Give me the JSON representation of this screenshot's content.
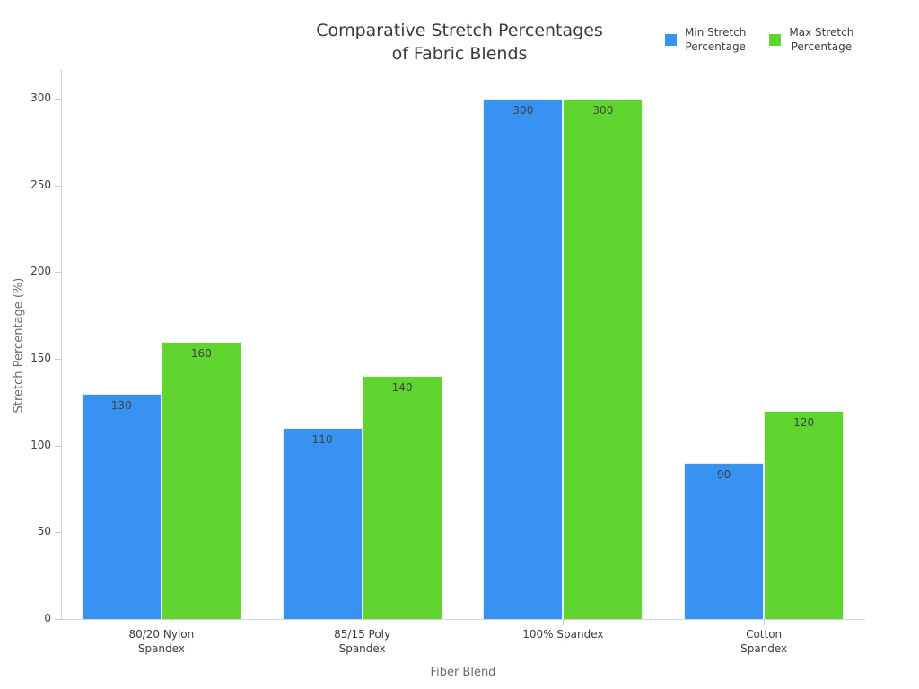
{
  "title": {
    "line1": "Comparative Stretch Percentages",
    "line2": "of Fabric Blends"
  },
  "legend": {
    "items": [
      {
        "line1": "Min Stretch",
        "line2": "Percentage"
      },
      {
        "line1": "Max Stretch",
        "line2": "Percentage"
      }
    ]
  },
  "chart_data": {
    "type": "bar",
    "title": "Comparative Stretch Percentages of Fabric Blends",
    "categories": [
      "80/20 Nylon\nSpandex",
      "85/15 Poly\nSpandex",
      "100% Spandex",
      "Cotton\nSpandex"
    ],
    "series": [
      {
        "name": "Min Stretch Percentage",
        "color": "#3792F1",
        "values": [
          130,
          110,
          300,
          90
        ]
      },
      {
        "name": "Max Stretch Percentage",
        "color": "#61D52F",
        "values": [
          160,
          140,
          300,
          120
        ]
      }
    ],
    "xlabel": "Fiber Blend",
    "ylabel": "Stretch Percentage (%)",
    "ylim": [
      0,
      300
    ],
    "yticks": [
      0,
      50,
      100,
      150,
      200,
      250,
      300
    ],
    "grid": false,
    "legend_position": "top-right",
    "value_label_position": "inside-top",
    "colors": {
      "title_text": "#3a3a3a",
      "tick_text": "#3d3d3d",
      "axis_title_text": "#6b6b6b",
      "axis_line": "#d6d6d6",
      "background": "#ffffff"
    }
  }
}
